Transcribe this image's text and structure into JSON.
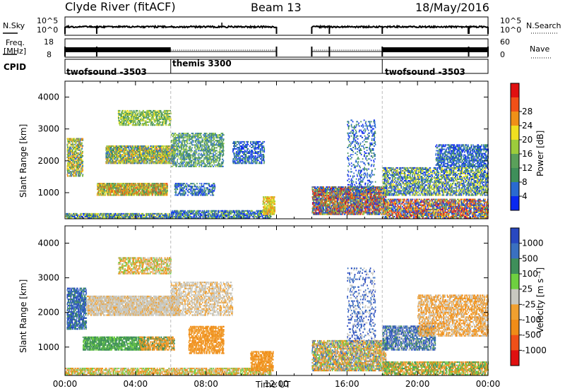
{
  "header": {
    "station": "Clyde River (fitACF)",
    "beam": "Beam 13",
    "date": "18/May/2016"
  },
  "top_panels": {
    "nsky_label": "N.Sky",
    "nsky_ticks": [
      "10^5",
      "10^0"
    ],
    "nsearch_label": "N.Search",
    "nsearch_ticks": [
      "10^5",
      "10^0"
    ],
    "freq_label_1": "Freq.",
    "freq_label_2": "[MHz]",
    "freq_ticks": [
      "18",
      "8"
    ],
    "nave_label": "Nave",
    "nave_ticks": [
      "60",
      "0"
    ],
    "cpid_label": "CPID"
  },
  "cpid_segments": [
    {
      "name": "twofsound -3503",
      "start_hour": 0
    },
    {
      "name": "themis 3300",
      "start_hour": 6
    },
    {
      "name": "twofsound -3503",
      "start_hour": 18
    }
  ],
  "colors": {
    "power": [
      "#0a28f0",
      "#2a6ad0",
      "#3f8f5a",
      "#5aa05a",
      "#9ccc3c",
      "#f0e020",
      "#f09018",
      "#f05018",
      "#e01010"
    ],
    "velocity": [
      "#e01010",
      "#f05018",
      "#f08c18",
      "#f0a030",
      "#c8c8c0",
      "#6ed040",
      "#3f8f5a",
      "#3a70c0",
      "#2848c0"
    ]
  },
  "chart_data": [
    {
      "type": "heatmap",
      "name": "Power",
      "xlabel": "",
      "ylabel": "Slant Range [km]",
      "xlim": [
        0,
        24
      ],
      "ylim": [
        180,
        4500
      ],
      "yticks": [
        1000,
        2000,
        3000,
        4000
      ],
      "colorbar_label": "Power [dB]",
      "colorbar_ticks": [
        "4",
        "8",
        "12",
        "16",
        "20",
        "24",
        "28"
      ],
      "data_gap_hours": [
        12,
        14
      ]
    },
    {
      "type": "heatmap",
      "name": "Velocity",
      "xlabel": "Time UT",
      "ylabel": "Slant Range [km]",
      "xlim": [
        0,
        24
      ],
      "ylim": [
        180,
        4500
      ],
      "yticks": [
        1000,
        2000,
        3000,
        4000
      ],
      "xticks": [
        "00:00",
        "04:00",
        "08:00",
        "12:00",
        "16:00",
        "20:00",
        "00:00"
      ],
      "colorbar_label": "Velocity [m s⁻¹]",
      "colorbar_ticks": [
        "1000",
        "500",
        "100",
        "25",
        "-25",
        "-100",
        "-500",
        "-1000"
      ],
      "data_gap_hours": [
        12,
        14
      ]
    }
  ]
}
